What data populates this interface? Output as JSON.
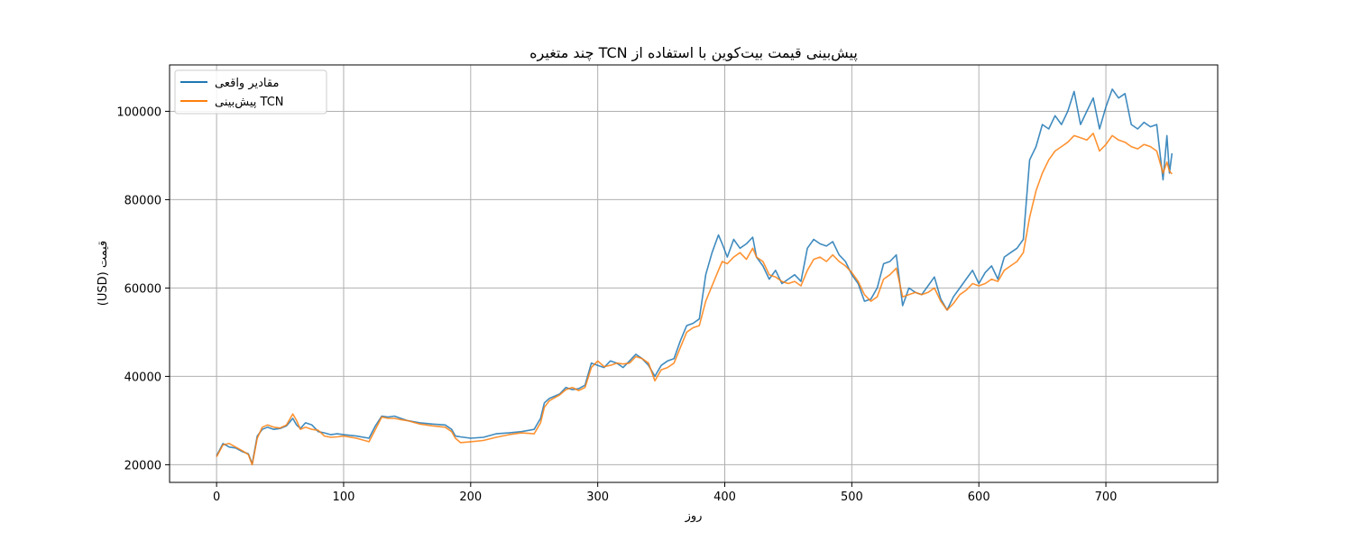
{
  "chart_data": {
    "type": "line",
    "title": "پیش‌بینی قیمت بیت‌کوین با استفاده از TCN چند متغیره",
    "xlabel": "روز",
    "ylabel": "قیمت (USD)",
    "xlim": [
      -37,
      788
    ],
    "ylim": [
      16000,
      110500
    ],
    "xticks": [
      0,
      100,
      200,
      300,
      400,
      500,
      600,
      700
    ],
    "yticks": [
      20000,
      40000,
      60000,
      80000,
      100000
    ],
    "xtick_labels": [
      "0",
      "100",
      "200",
      "300",
      "400",
      "500",
      "600",
      "700"
    ],
    "ytick_labels": [
      "20000",
      "40000",
      "60000",
      "80000",
      "100000"
    ],
    "grid": true,
    "legend_position": "top-left",
    "series": [
      {
        "name": "مقادیر واقعی",
        "color": "#1f77b4",
        "x": [
          0,
          5,
          10,
          15,
          20,
          25,
          28,
          32,
          36,
          40,
          45,
          50,
          55,
          60,
          63,
          66,
          70,
          75,
          80,
          85,
          90,
          95,
          100,
          110,
          120,
          125,
          130,
          135,
          140,
          145,
          150,
          160,
          170,
          180,
          185,
          188,
          192,
          200,
          210,
          220,
          230,
          240,
          250,
          255,
          258,
          262,
          270,
          275,
          280,
          285,
          290,
          295,
          300,
          305,
          310,
          315,
          320,
          325,
          330,
          335,
          340,
          345,
          350,
          355,
          360,
          365,
          370,
          375,
          380,
          385,
          390,
          395,
          398,
          402,
          407,
          412,
          417,
          422,
          425,
          430,
          435,
          440,
          445,
          450,
          455,
          460,
          465,
          470,
          475,
          480,
          485,
          490,
          495,
          500,
          505,
          510,
          515,
          520,
          525,
          530,
          535,
          540,
          545,
          550,
          555,
          560,
          565,
          570,
          575,
          580,
          585,
          590,
          595,
          600,
          605,
          610,
          615,
          620,
          625,
          630,
          635,
          640,
          645,
          650,
          655,
          660,
          665,
          670,
          675,
          680,
          685,
          690,
          695,
          700,
          705,
          710,
          715,
          720,
          725,
          730,
          735,
          740,
          745,
          748,
          750,
          752
        ],
        "y": [
          22000,
          24800,
          24000,
          23800,
          23000,
          22500,
          20200,
          26500,
          28000,
          28500,
          28000,
          28200,
          28800,
          30500,
          29000,
          28200,
          29500,
          29000,
          27500,
          27200,
          26800,
          27000,
          26800,
          26500,
          26000,
          28800,
          31000,
          30800,
          31000,
          30500,
          30000,
          29500,
          29200,
          29000,
          28000,
          26500,
          26300,
          26000,
          26200,
          27000,
          27200,
          27500,
          28000,
          30500,
          34000,
          35000,
          36000,
          37500,
          37000,
          37200,
          38000,
          43000,
          42500,
          42000,
          43500,
          43000,
          42000,
          43500,
          45000,
          44000,
          42500,
          40000,
          42500,
          43500,
          44000,
          48000,
          51500,
          52000,
          53000,
          63000,
          68000,
          72000,
          70000,
          67000,
          71000,
          69000,
          70000,
          71500,
          67000,
          65000,
          62000,
          64000,
          61000,
          62000,
          63000,
          61500,
          69000,
          71000,
          70000,
          69500,
          70500,
          67500,
          66000,
          63000,
          61000,
          57000,
          57500,
          60000,
          65500,
          66000,
          67500,
          56000,
          60000,
          59000,
          58500,
          60500,
          62500,
          57500,
          55000,
          58000,
          60000,
          62000,
          64000,
          61000,
          63500,
          65000,
          62000,
          67000,
          68000,
          69000,
          71000,
          89000,
          92000,
          97000,
          96000,
          99000,
          97000,
          100000,
          104500,
          97000,
          100000,
          103000,
          96000,
          101000,
          105000,
          103000,
          104000,
          97000,
          96000,
          97500,
          96500,
          97000,
          84500,
          94500,
          86000,
          90500
        ]
      },
      {
        "name": "پیش‌بینی TCN",
        "color": "#ff7f0e",
        "x": [
          0,
          5,
          10,
          15,
          20,
          25,
          28,
          32,
          36,
          40,
          45,
          50,
          55,
          60,
          63,
          66,
          70,
          75,
          80,
          85,
          90,
          95,
          100,
          110,
          120,
          125,
          130,
          135,
          140,
          145,
          150,
          160,
          170,
          180,
          185,
          188,
          192,
          200,
          210,
          220,
          230,
          240,
          250,
          255,
          258,
          262,
          270,
          275,
          280,
          285,
          290,
          295,
          300,
          305,
          310,
          315,
          320,
          325,
          330,
          335,
          340,
          345,
          350,
          355,
          360,
          365,
          370,
          375,
          380,
          385,
          390,
          395,
          398,
          402,
          407,
          412,
          417,
          422,
          425,
          430,
          435,
          440,
          445,
          450,
          455,
          460,
          465,
          470,
          475,
          480,
          485,
          490,
          495,
          500,
          505,
          510,
          515,
          520,
          525,
          530,
          535,
          540,
          545,
          550,
          555,
          560,
          565,
          570,
          575,
          580,
          585,
          590,
          595,
          600,
          605,
          610,
          615,
          620,
          625,
          630,
          635,
          640,
          645,
          650,
          655,
          660,
          665,
          670,
          675,
          680,
          685,
          690,
          695,
          700,
          705,
          710,
          715,
          720,
          725,
          730,
          735,
          740,
          745,
          748,
          750,
          752
        ],
        "y": [
          21800,
          24500,
          24800,
          24000,
          23200,
          22300,
          20000,
          26000,
          28500,
          29000,
          28500,
          28300,
          29000,
          31500,
          30000,
          28000,
          28500,
          28000,
          27800,
          26500,
          26200,
          26300,
          26500,
          26000,
          25200,
          28000,
          30800,
          30500,
          30500,
          30200,
          30000,
          29200,
          28800,
          28500,
          27500,
          26000,
          25000,
          25200,
          25500,
          26200,
          26800,
          27200,
          27000,
          29500,
          33000,
          34500,
          35800,
          37000,
          37500,
          36800,
          37500,
          42000,
          43500,
          42200,
          42500,
          43000,
          42800,
          43000,
          44500,
          44000,
          43000,
          39000,
          41500,
          42000,
          43000,
          46500,
          50000,
          51000,
          51500,
          57000,
          60500,
          64000,
          66000,
          65500,
          67000,
          68000,
          66500,
          69000,
          67000,
          66000,
          63000,
          62500,
          61500,
          61000,
          61500,
          60500,
          64000,
          66500,
          67000,
          66000,
          67500,
          66000,
          65000,
          63500,
          61500,
          58500,
          57000,
          58000,
          62000,
          63000,
          64500,
          58000,
          58500,
          59000,
          58500,
          59000,
          60000,
          57000,
          55000,
          56500,
          58500,
          59500,
          61000,
          60500,
          61000,
          62000,
          61500,
          64000,
          65000,
          66000,
          68000,
          76000,
          82000,
          86000,
          89000,
          91000,
          92000,
          93000,
          94500,
          94000,
          93500,
          95000,
          91000,
          92500,
          94500,
          93500,
          93000,
          92000,
          91500,
          92500,
          92000,
          91000,
          86000,
          88500,
          86500,
          85800
        ]
      }
    ]
  }
}
